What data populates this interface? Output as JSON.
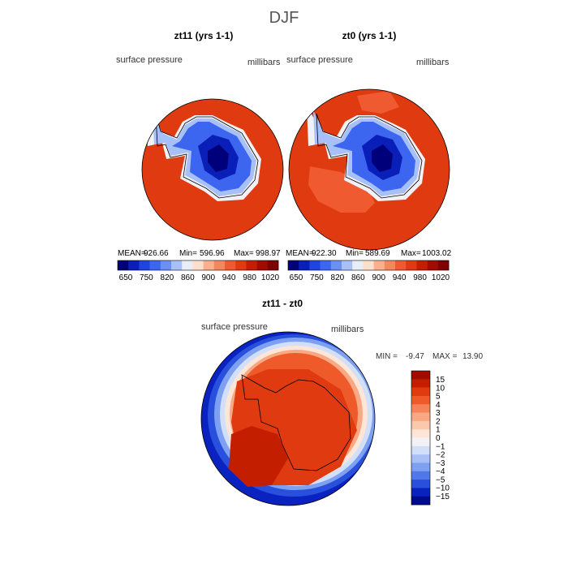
{
  "page_title": "DJF",
  "chart_data": [
    {
      "type": "heatmap",
      "title": "zt11 (yrs 1-1)",
      "variable": "surface pressure",
      "units": "millibars",
      "stats": {
        "mean_label": "MEAN=",
        "mean": "926.66",
        "min_label": "Min=",
        "min": "596.96",
        "max_label": "Max=",
        "max": "998.97"
      },
      "colorbar_ticks": [
        "650",
        "750",
        "820",
        "860",
        "900",
        "940",
        "980",
        "1020"
      ],
      "colorbar_levels": [
        650,
        700,
        750,
        800,
        820,
        840,
        860,
        880,
        900,
        920,
        940,
        960,
        980,
        1000,
        1020
      ],
      "colors": [
        "#00007a",
        "#0a1fb8",
        "#1f44e0",
        "#3c66f0",
        "#6b8ff5",
        "#a8c0f8",
        "#e8eef8",
        "#fde0cc",
        "#f9b08e",
        "#f5875e",
        "#f05a30",
        "#e03a10",
        "#c41e00",
        "#a00c00",
        "#800000"
      ]
    },
    {
      "type": "heatmap",
      "title": "zt0 (yrs 1-1)",
      "variable": "surface pressure",
      "units": "millibars",
      "stats": {
        "mean_label": "MEAN=",
        "mean": "922.30",
        "min_label": "Min=",
        "min": "589.69",
        "max_label": "Max=",
        "max": "1003.02"
      },
      "colorbar_ticks": [
        "650",
        "750",
        "820",
        "860",
        "900",
        "940",
        "980",
        "1020"
      ],
      "colorbar_levels": [
        650,
        700,
        750,
        800,
        820,
        840,
        860,
        880,
        900,
        920,
        940,
        960,
        980,
        1000,
        1020
      ],
      "colors": [
        "#00007a",
        "#0a1fb8",
        "#1f44e0",
        "#3c66f0",
        "#6b8ff5",
        "#a8c0f8",
        "#e8eef8",
        "#fde0cc",
        "#f9b08e",
        "#f5875e",
        "#f05a30",
        "#e03a10",
        "#c41e00",
        "#a00c00",
        "#800000"
      ]
    },
    {
      "type": "heatmap",
      "title": "zt11 - zt0",
      "variable": "surface pressure",
      "units": "millibars",
      "stats": {
        "min_label": "MIN =",
        "min": "-9.47",
        "max_label": "MAX =",
        "max": "13.90"
      },
      "colorbar_ticks": [
        "15",
        "10",
        "5",
        "4",
        "3",
        "2",
        "1",
        "0",
        "−1",
        "−2",
        "−3",
        "−4",
        "−5",
        "−10",
        "−15"
      ],
      "colors": [
        "#a00c00",
        "#c41e00",
        "#e03a10",
        "#ef5a2a",
        "#f5845a",
        "#f9a884",
        "#fbc8ac",
        "#fde6d8",
        "#f2f2f6",
        "#d2dff8",
        "#a8c0f5",
        "#7ea0f0",
        "#5078e8",
        "#2850dc",
        "#0a22c0",
        "#000a8c"
      ]
    }
  ]
}
